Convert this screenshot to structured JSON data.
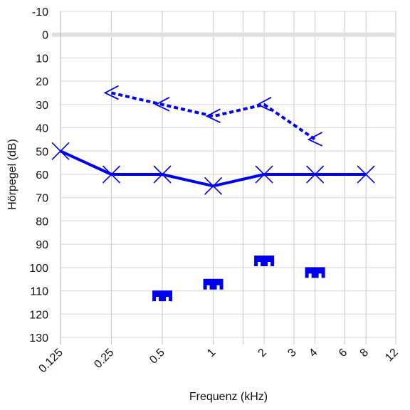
{
  "chart_data": {
    "type": "line",
    "title": "",
    "xlabel": "Frequenz (kHz)",
    "ylabel": "Hörpegel (dB)",
    "x_scale": "log",
    "y_inverted": true,
    "ylim": [
      -10,
      130
    ],
    "xlim": [
      0.125,
      12
    ],
    "grid": true,
    "x_ticks": [
      {
        "value": 0.125,
        "label": "0.125"
      },
      {
        "value": 0.25,
        "label": "0.25"
      },
      {
        "value": 0.5,
        "label": "0.5"
      },
      {
        "value": 1,
        "label": "1"
      },
      {
        "value": 2,
        "label": "2"
      },
      {
        "value": 3,
        "label": "3"
      },
      {
        "value": 4,
        "label": "4"
      },
      {
        "value": 6,
        "label": "6"
      },
      {
        "value": 8,
        "label": "8"
      },
      {
        "value": 12,
        "label": "12"
      }
    ],
    "x_minor_gridlines": [
      1.5
    ],
    "y_ticks": [
      -10,
      0,
      10,
      20,
      30,
      40,
      50,
      60,
      70,
      80,
      90,
      100,
      110,
      120,
      130
    ],
    "reference_line": {
      "y": 0,
      "color": "#e0e0e0"
    },
    "series": [
      {
        "marker": "x",
        "line": "solid",
        "color": "#0000ee",
        "points": [
          {
            "x": 0.125,
            "y": 50
          },
          {
            "x": 0.25,
            "y": 60
          },
          {
            "x": 0.5,
            "y": 60
          },
          {
            "x": 1,
            "y": 65
          },
          {
            "x": 2,
            "y": 60
          },
          {
            "x": 4,
            "y": 60
          },
          {
            "x": 8,
            "y": 60
          }
        ]
      },
      {
        "marker": "bone-conduction-left",
        "line": "dotted",
        "color": "#0000ee",
        "points": [
          {
            "x": 0.25,
            "y": 25
          },
          {
            "x": 0.5,
            "y": 30
          },
          {
            "x": 1,
            "y": 35
          },
          {
            "x": 2,
            "y": 30
          },
          {
            "x": 4,
            "y": 45
          }
        ]
      },
      {
        "marker": "masked-block",
        "line": "none",
        "color": "#0000ee",
        "points": [
          {
            "x": 0.5,
            "y": 112
          },
          {
            "x": 1,
            "y": 107
          },
          {
            "x": 2,
            "y": 97
          },
          {
            "x": 4,
            "y": 102
          }
        ]
      }
    ]
  }
}
